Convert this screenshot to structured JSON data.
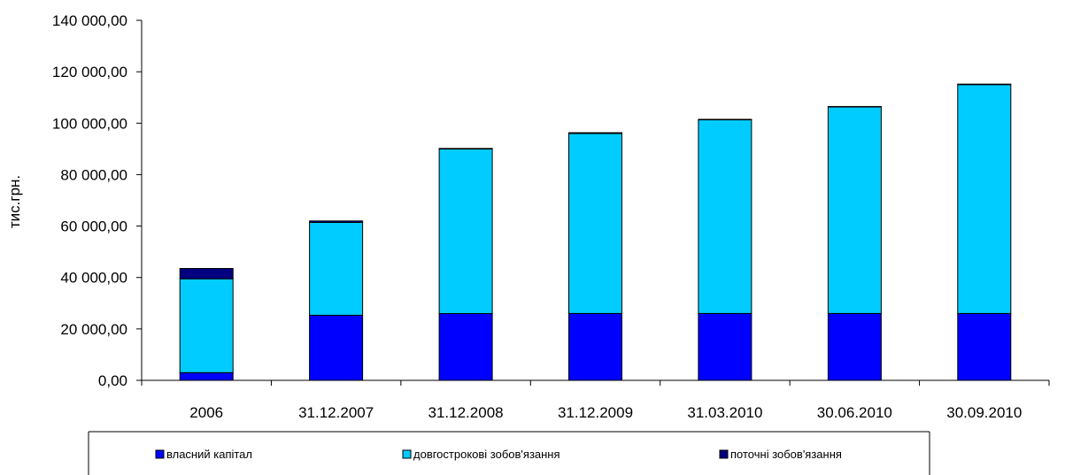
{
  "chart_data": {
    "type": "bar",
    "stacked": true,
    "title": "",
    "xlabel": "",
    "ylabel": "тис.грн.",
    "ylim": [
      0,
      140000
    ],
    "yticks": [
      0,
      20000,
      40000,
      60000,
      80000,
      100000,
      120000,
      140000
    ],
    "ytick_labels": [
      "0,00",
      "20 000,00",
      "40 000,00",
      "60 000,00",
      "80 000,00",
      "100 000,00",
      "120 000,00",
      "140 000,00"
    ],
    "categories": [
      "2006",
      "31.12.2007",
      "31.12.2008",
      "31.12.2009",
      "31.03.2010",
      "30.06.2010",
      "30.09.2010"
    ],
    "series": [
      {
        "name": "власний капітал",
        "color": "#0000ff",
        "values": [
          3000,
          25300,
          26000,
          26000,
          26000,
          26000,
          26000
        ]
      },
      {
        "name": "довгострокові зобов'язання",
        "color": "#00ccff",
        "values": [
          36500,
          36100,
          64000,
          70000,
          75300,
          80300,
          89000
        ]
      },
      {
        "name": "поточні зобов'язання",
        "color": "#000080",
        "values": [
          4000,
          600,
          200,
          300,
          200,
          200,
          200
        ]
      }
    ],
    "grid": false,
    "legend_position": "bottom"
  }
}
